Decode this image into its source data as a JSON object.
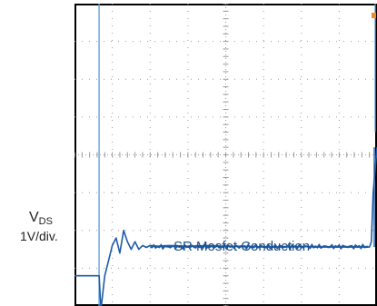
{
  "chart_data": {
    "type": "line",
    "ylabel_symbol": "V",
    "ylabel_subscript": "DS",
    "ylabel_scale": "1V/div.",
    "annotation": "SR Mosfet Conduction",
    "channel_marker": "D",
    "divisions": {
      "x": 8,
      "y": 8
    },
    "colors": {
      "trace": "#1f5aa6",
      "cursor": "#5b9bd5",
      "grid": "#9a9a9a",
      "frame": "#000000",
      "marker": "#2c4c9a",
      "trigger": "#f08a24"
    },
    "series": [
      {
        "x": [
          0.0,
          0.5,
          0.65,
          0.7,
          0.8,
          0.9,
          1.0,
          1.1,
          1.2,
          1.3,
          1.4,
          1.5,
          1.6,
          1.7,
          1.8,
          1.9,
          2.0,
          2.2,
          2.5,
          3.0,
          3.5,
          4.0,
          4.5,
          5.0,
          5.5,
          6.0,
          6.5,
          7.0,
          7.5,
          7.8,
          7.85,
          7.9,
          8.0
        ],
        "y": [
          -3.2,
          -3.2,
          -3.2,
          -4.1,
          -3.2,
          -2.8,
          -2.4,
          -2.2,
          -2.6,
          -2.0,
          -2.3,
          -2.5,
          -2.3,
          -2.5,
          -2.4,
          -2.45,
          -2.4,
          -2.42,
          -2.4,
          -2.42,
          -2.4,
          -2.42,
          -2.42,
          -2.44,
          -2.44,
          -2.43,
          -2.44,
          -2.44,
          -2.44,
          -2.44,
          -2.3,
          -1.0,
          0.2
        ]
      }
    ]
  }
}
